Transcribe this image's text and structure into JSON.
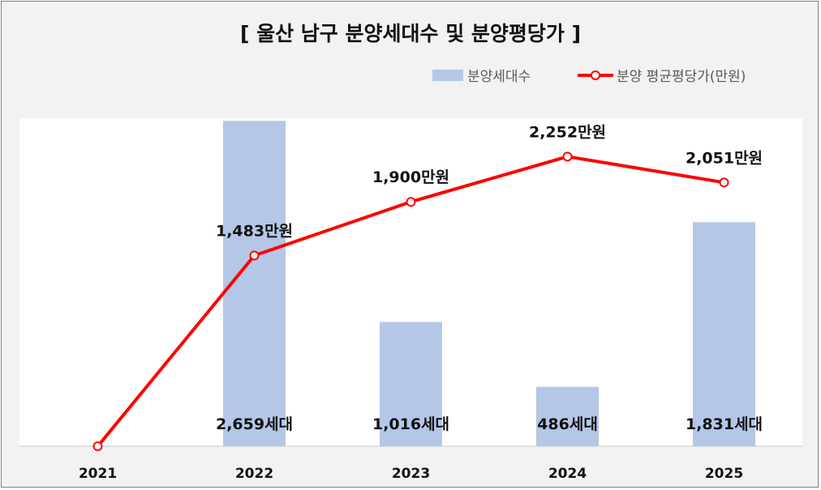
{
  "chart_data": {
    "type": "bar+line",
    "title": "[ 울산 남구 분양세대수 및 분양평당가 ]",
    "categories": [
      "2021",
      "2022",
      "2023",
      "2024",
      "2025"
    ],
    "series": [
      {
        "name": "분양세대수",
        "kind": "bar",
        "axis": "secondary",
        "values": [
          0,
          2659,
          1016,
          486,
          1831
        ],
        "labels": [
          "",
          "2,659세대",
          "1,016세대",
          "486세대",
          "1,831세대"
        ],
        "color": "#b4c7e7"
      },
      {
        "name": "분양 평균평당가(만원)",
        "kind": "line",
        "axis": "primary",
        "values": [
          0,
          1483,
          1900,
          2252,
          2051
        ],
        "labels": [
          "",
          "1,483만원",
          "1,900만원",
          "2,252만원",
          "2,051만원"
        ],
        "color": "#ff0000"
      }
    ],
    "ylim_line": [
      0,
      2550
    ],
    "ylim_bar": [
      0,
      2680
    ],
    "legend_position": "top-right",
    "grid": false
  },
  "colors": {
    "panel_bg": "#f2f2f2",
    "plot_bg": "#ffffff",
    "bar": "#b4c7e7",
    "line": "#ff0000",
    "axis": "#d9d9d9"
  }
}
